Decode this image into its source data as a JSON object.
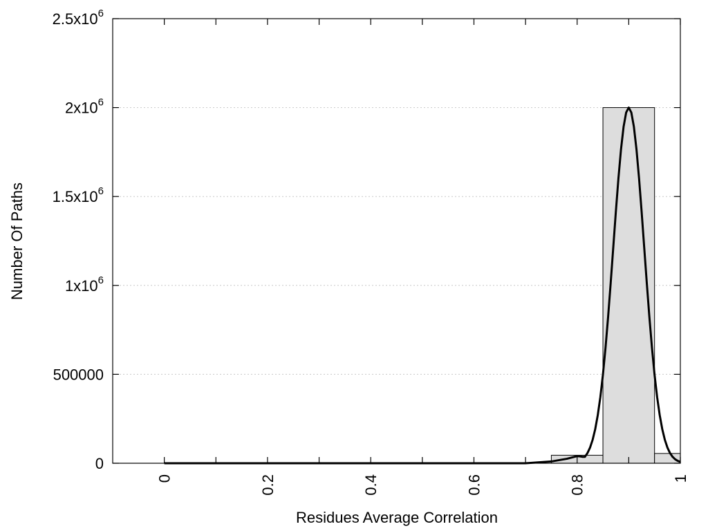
{
  "chart_data": {
    "type": "bar",
    "title": "",
    "xlabel": "Residues Average Correlation",
    "ylabel": "Number Of Paths",
    "xlim": [
      -0.1,
      1.0
    ],
    "ylim": [
      0,
      2500000
    ],
    "xticks": [
      {
        "value": 0,
        "label": "0"
      },
      {
        "value": 0.2,
        "label": "0.2"
      },
      {
        "value": 0.4,
        "label": "0.4"
      },
      {
        "value": 0.6,
        "label": "0.6"
      },
      {
        "value": 0.8,
        "label": "0.8"
      },
      {
        "value": 1.0,
        "label": "1"
      }
    ],
    "yticks": [
      {
        "value": 0,
        "label": "0",
        "exp": ""
      },
      {
        "value": 500000,
        "label": "500000",
        "exp": ""
      },
      {
        "value": 1000000,
        "label": "1x10",
        "exp": "6"
      },
      {
        "value": 1500000,
        "label": "1.5x10",
        "exp": "6"
      },
      {
        "value": 2000000,
        "label": "2x10",
        "exp": "6"
      },
      {
        "value": 2500000,
        "label": "2.5x10",
        "exp": "6"
      }
    ],
    "grid": "horizontal dotted",
    "bars": [
      {
        "x0": 0.75,
        "x1": 0.85,
        "value": 45000
      },
      {
        "x0": 0.85,
        "x1": 0.95,
        "value": 2000000
      },
      {
        "x0": 0.95,
        "x1": 1.0,
        "value": 55000
      }
    ],
    "bar_color": "#dddddd",
    "curve": {
      "type": "gaussian fit",
      "peak_x": 0.9,
      "peak_y": 2000000,
      "sigma": 0.03,
      "baseline_points": [
        [
          0.0,
          0
        ],
        [
          0.7,
          0
        ],
        [
          0.75,
          10000
        ],
        [
          0.78,
          25000
        ],
        [
          0.8,
          40000
        ]
      ]
    }
  }
}
